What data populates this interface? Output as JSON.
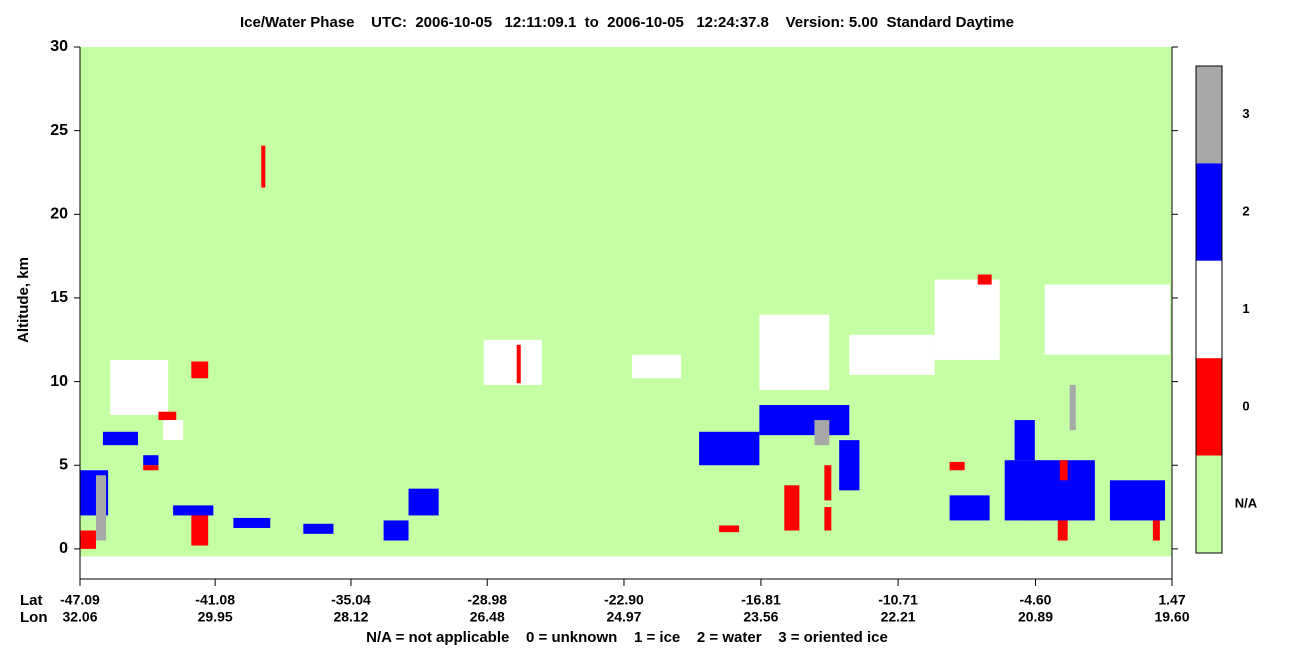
{
  "chart_data": {
    "type": "curtain",
    "title": "Ice/Water Phase    UTC:  2006-10-05   12:11:09.1  to  2006-10-05   12:24:37.8    Version: 5.00  Standard Daytime",
    "ylabel": "Altitude, km",
    "ylim": [
      -1.8,
      30
    ],
    "yticks": [
      0,
      5,
      10,
      15,
      20,
      25,
      30
    ],
    "xlim": [
      -47.09,
      1.47
    ],
    "xticks": [
      -47.09,
      -41.08,
      -35.04,
      -28.98,
      {
        "value": -22.9,
        "label": "-22.90"
      },
      -16.81,
      -10.71,
      {
        "value": -4.6,
        "label": "-4.60"
      },
      1.47
    ],
    "lat_label": "Lat",
    "lon_label": "Lon",
    "lon_labels": [
      "32.06",
      "29.95",
      "28.12",
      "26.48",
      "24.97",
      "23.56",
      "22.21",
      "20.89",
      "19.60"
    ],
    "footnote": "N/A = not applicable    0 = unknown    1 = ice    2 = water    3 = oriented ice",
    "colorbar": [
      {
        "label": "3",
        "color": "#a8a8a8"
      },
      {
        "label": "2",
        "color": "#0000ff"
      },
      {
        "label": "1",
        "color": "#ffffff"
      },
      {
        "label": "0",
        "color": "#ff0000"
      },
      {
        "label": "N/A",
        "color": "#c4ffa4"
      }
    ],
    "na_region": {
      "lat": [
        -47.09,
        1.47
      ],
      "alt": [
        -0.45,
        30
      ]
    },
    "patches": [
      {
        "phase": "1",
        "lat": [
          -45.75,
          -43.17
        ],
        "alt": [
          8.0,
          11.3
        ]
      },
      {
        "phase": "1",
        "lat": [
          -29.14,
          -26.55
        ],
        "alt": [
          9.8,
          12.5
        ]
      },
      {
        "phase": "1",
        "lat": [
          -22.54,
          -20.36
        ],
        "alt": [
          10.2,
          11.6
        ]
      },
      {
        "phase": "1",
        "lat": [
          -16.88,
          -13.77
        ],
        "alt": [
          9.5,
          14.0
        ]
      },
      {
        "phase": "1",
        "lat": [
          -12.88,
          -9.09
        ],
        "alt": [
          10.4,
          12.8
        ]
      },
      {
        "phase": "1",
        "lat": [
          -9.09,
          -6.19
        ],
        "alt": [
          11.3,
          16.1
        ]
      },
      {
        "phase": "1",
        "lat": [
          -4.19,
          1.38
        ],
        "alt": [
          11.6,
          15.8
        ]
      },
      {
        "phase": "1",
        "lat": [
          -43.39,
          -42.5
        ],
        "alt": [
          6.5,
          7.7
        ]
      },
      {
        "phase": "0",
        "lat": [
          -39.03,
          -38.85
        ],
        "alt": [
          21.6,
          24.1
        ]
      },
      {
        "phase": "0",
        "lat": [
          -42.14,
          -41.39
        ],
        "alt": [
          10.2,
          11.2
        ]
      },
      {
        "phase": "0",
        "lat": [
          -42.14,
          -41.39
        ],
        "alt": [
          0.2,
          2.2
        ]
      },
      {
        "phase": "0",
        "lat": [
          -47.09,
          -46.38
        ],
        "alt": [
          0.0,
          1.1
        ]
      },
      {
        "phase": "0",
        "lat": [
          -43.6,
          -42.81
        ],
        "alt": [
          7.7,
          8.2
        ]
      },
      {
        "phase": "0",
        "lat": [
          -27.67,
          -27.49
        ],
        "alt": [
          9.9,
          12.2
        ]
      },
      {
        "phase": "0",
        "lat": [
          -18.67,
          -17.78
        ],
        "alt": [
          1.0,
          1.4
        ]
      },
      {
        "phase": "0",
        "lat": [
          -15.77,
          -15.1
        ],
        "alt": [
          1.1,
          3.8
        ]
      },
      {
        "phase": "0",
        "lat": [
          -13.99,
          -13.68
        ],
        "alt": [
          2.9,
          5.0
        ]
      },
      {
        "phase": "0",
        "lat": [
          -13.99,
          -13.68
        ],
        "alt": [
          1.1,
          2.5
        ]
      },
      {
        "phase": "0",
        "lat": [
          -8.42,
          -7.75
        ],
        "alt": [
          4.7,
          5.2
        ]
      },
      {
        "phase": "0",
        "lat": [
          -7.17,
          -6.55
        ],
        "alt": [
          15.8,
          16.4
        ]
      },
      {
        "phase": "0",
        "lat": [
          -4.95,
          -4.41
        ],
        "alt": [
          1.7,
          2.6
        ]
      },
      {
        "phase": "0",
        "lat": [
          -3.61,
          -3.17
        ],
        "alt": [
          0.5,
          2.2
        ]
      },
      {
        "phase": "0",
        "lat": [
          0.62,
          0.93
        ],
        "alt": [
          0.5,
          2.0
        ]
      },
      {
        "phase": "0",
        "lat": [
          -5.08,
          -4.77
        ],
        "alt": [
          5.6,
          7.4
        ]
      },
      {
        "phase": "2",
        "lat": [
          -47.09,
          -45.84
        ],
        "alt": [
          2.0,
          4.7
        ]
      },
      {
        "phase": "2",
        "lat": [
          -46.07,
          -44.51
        ],
        "alt": [
          6.2,
          7.0
        ]
      },
      {
        "phase": "2",
        "lat": [
          -44.28,
          -43.6
        ],
        "alt": [
          5.0,
          5.6
        ]
      },
      {
        "phase": "0",
        "lat": [
          -44.28,
          -43.6
        ],
        "alt": [
          4.7,
          5.0
        ]
      },
      {
        "phase": "2",
        "lat": [
          -42.95,
          -41.16
        ],
        "alt": [
          2.0,
          2.6
        ]
      },
      {
        "phase": "2",
        "lat": [
          -40.27,
          -38.63
        ],
        "alt": [
          1.25,
          1.85
        ]
      },
      {
        "phase": "2",
        "lat": [
          -37.16,
          -35.82
        ],
        "alt": [
          0.9,
          1.5
        ]
      },
      {
        "phase": "2",
        "lat": [
          -33.59,
          -32.48
        ],
        "alt": [
          0.5,
          1.7
        ]
      },
      {
        "phase": "2",
        "lat": [
          -32.48,
          -31.14
        ],
        "alt": [
          2.0,
          3.6
        ]
      },
      {
        "phase": "2",
        "lat": [
          -19.56,
          -16.88
        ],
        "alt": [
          5.0,
          7.0
        ]
      },
      {
        "phase": "2",
        "lat": [
          -16.88,
          -12.88
        ],
        "alt": [
          6.8,
          8.6
        ]
      },
      {
        "phase": "2",
        "lat": [
          -13.33,
          -12.43
        ],
        "alt": [
          3.5,
          6.5
        ]
      },
      {
        "phase": "2",
        "lat": [
          -8.42,
          -6.64
        ],
        "alt": [
          1.7,
          3.2
        ]
      },
      {
        "phase": "2",
        "lat": [
          -5.97,
          -1.96
        ],
        "alt": [
          1.7,
          5.3
        ]
      },
      {
        "phase": "2",
        "lat": [
          -1.29,
          1.16
        ],
        "alt": [
          1.7,
          4.1
        ]
      },
      {
        "phase": "2",
        "lat": [
          -5.53,
          -4.63
        ],
        "alt": [
          5.3,
          7.7
        ]
      },
      {
        "phase": "0",
        "lat": [
          -3.52,
          -3.17
        ],
        "alt": [
          4.1,
          5.3
        ]
      },
      {
        "phase": "3",
        "lat": [
          -46.38,
          -45.93
        ],
        "alt": [
          0.5,
          4.4
        ]
      },
      {
        "phase": "3",
        "lat": [
          -3.08,
          -2.81
        ],
        "alt": [
          7.1,
          9.8
        ]
      },
      {
        "phase": "3",
        "lat": [
          -14.43,
          -13.77
        ],
        "alt": [
          6.2,
          7.7
        ]
      }
    ]
  }
}
